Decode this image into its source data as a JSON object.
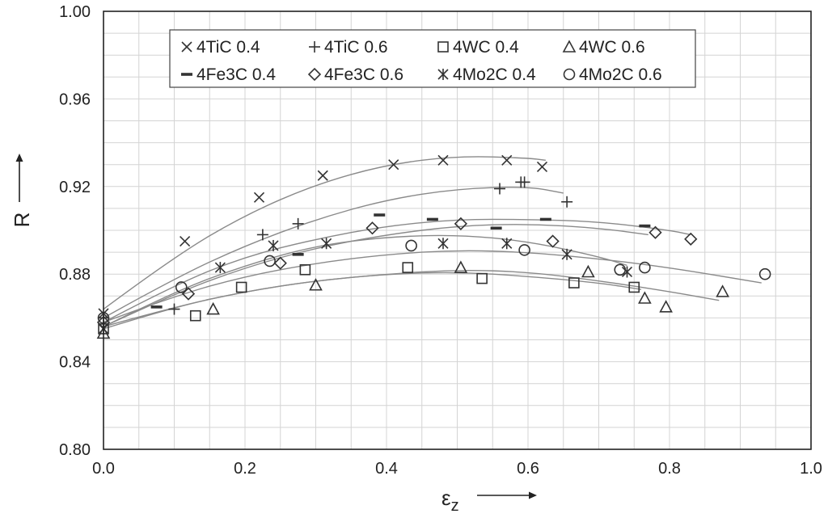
{
  "chart_data": {
    "type": "scatter",
    "xlabel_main": "ε",
    "xlabel_sub": "z",
    "ylabel": "R",
    "xlim": [
      0.0,
      1.0
    ],
    "ylim": [
      0.8,
      1.0
    ],
    "x_ticks": [
      "0.0",
      "0.2",
      "0.4",
      "0.6",
      "0.8",
      "1.0"
    ],
    "y_ticks": [
      "0.80",
      "0.84",
      "0.88",
      "0.92",
      "0.96",
      "1.00"
    ],
    "grid": true,
    "legend_position": "top",
    "series": [
      {
        "name": "4TiC 0.4",
        "marker": "x",
        "points": [
          [
            0.0,
            0.862
          ],
          [
            0.115,
            0.895
          ],
          [
            0.22,
            0.915
          ],
          [
            0.31,
            0.925
          ],
          [
            0.41,
            0.93
          ],
          [
            0.48,
            0.932
          ],
          [
            0.57,
            0.932
          ],
          [
            0.62,
            0.929
          ]
        ],
        "fit": [
          [
            0.0,
            0.864
          ],
          [
            0.1,
            0.888
          ],
          [
            0.2,
            0.907
          ],
          [
            0.3,
            0.921
          ],
          [
            0.4,
            0.93
          ],
          [
            0.5,
            0.934
          ],
          [
            0.6,
            0.933
          ],
          [
            0.625,
            0.932
          ]
        ]
      },
      {
        "name": "4TiC 0.6",
        "marker": "+",
        "points": [
          [
            0.0,
            0.86
          ],
          [
            0.1,
            0.864
          ],
          [
            0.225,
            0.898
          ],
          [
            0.275,
            0.903
          ],
          [
            0.56,
            0.919
          ],
          [
            0.59,
            0.922
          ],
          [
            0.595,
            0.922
          ],
          [
            0.655,
            0.913
          ]
        ],
        "fit": [
          [
            0.0,
            0.86
          ],
          [
            0.1,
            0.878
          ],
          [
            0.2,
            0.893
          ],
          [
            0.3,
            0.905
          ],
          [
            0.4,
            0.914
          ],
          [
            0.5,
            0.919
          ],
          [
            0.6,
            0.92
          ],
          [
            0.65,
            0.917
          ]
        ]
      },
      {
        "name": "4WC 0.4",
        "marker": "square",
        "points": [
          [
            0.0,
            0.855
          ],
          [
            0.13,
            0.861
          ],
          [
            0.195,
            0.874
          ],
          [
            0.285,
            0.882
          ],
          [
            0.43,
            0.883
          ],
          [
            0.535,
            0.878
          ],
          [
            0.665,
            0.876
          ],
          [
            0.75,
            0.874
          ]
        ],
        "fit": [
          [
            0.0,
            0.856
          ],
          [
            0.1,
            0.865
          ],
          [
            0.2,
            0.872
          ],
          [
            0.3,
            0.877
          ],
          [
            0.4,
            0.88
          ],
          [
            0.5,
            0.881
          ],
          [
            0.6,
            0.879
          ],
          [
            0.7,
            0.876
          ],
          [
            0.76,
            0.873
          ]
        ]
      },
      {
        "name": "4WC 0.6",
        "marker": "triangle",
        "points": [
          [
            0.0,
            0.853
          ],
          [
            0.155,
            0.864
          ],
          [
            0.3,
            0.875
          ],
          [
            0.505,
            0.883
          ],
          [
            0.685,
            0.881
          ],
          [
            0.765,
            0.869
          ],
          [
            0.795,
            0.865
          ],
          [
            0.875,
            0.872
          ]
        ],
        "fit": [
          [
            0.0,
            0.855
          ],
          [
            0.1,
            0.865
          ],
          [
            0.2,
            0.872
          ],
          [
            0.3,
            0.877
          ],
          [
            0.4,
            0.88
          ],
          [
            0.5,
            0.882
          ],
          [
            0.6,
            0.881
          ],
          [
            0.7,
            0.877
          ],
          [
            0.8,
            0.872
          ],
          [
            0.87,
            0.868
          ]
        ]
      },
      {
        "name": "4Fe3C 0.4",
        "marker": "dash",
        "points": [
          [
            0.075,
            0.865
          ],
          [
            0.275,
            0.889
          ],
          [
            0.39,
            0.907
          ],
          [
            0.465,
            0.905
          ],
          [
            0.555,
            0.901
          ],
          [
            0.625,
            0.905
          ],
          [
            0.765,
            0.902
          ]
        ],
        "fit": [
          [
            0.0,
            0.856
          ],
          [
            0.1,
            0.871
          ],
          [
            0.2,
            0.883
          ],
          [
            0.3,
            0.892
          ],
          [
            0.4,
            0.898
          ],
          [
            0.5,
            0.902
          ],
          [
            0.6,
            0.903
          ],
          [
            0.7,
            0.901
          ],
          [
            0.77,
            0.898
          ]
        ]
      },
      {
        "name": "4Fe3C 0.6",
        "marker": "diamond",
        "points": [
          [
            0.0,
            0.858
          ],
          [
            0.12,
            0.871
          ],
          [
            0.25,
            0.885
          ],
          [
            0.38,
            0.901
          ],
          [
            0.505,
            0.903
          ],
          [
            0.635,
            0.895
          ],
          [
            0.78,
            0.899
          ],
          [
            0.83,
            0.896
          ]
        ],
        "fit": [
          [
            0.0,
            0.858
          ],
          [
            0.1,
            0.875
          ],
          [
            0.2,
            0.888
          ],
          [
            0.3,
            0.896
          ],
          [
            0.4,
            0.902
          ],
          [
            0.5,
            0.905
          ],
          [
            0.6,
            0.905
          ],
          [
            0.7,
            0.904
          ],
          [
            0.8,
            0.9
          ],
          [
            0.83,
            0.898
          ]
        ]
      },
      {
        "name": "4Mo2C 0.4",
        "marker": "asterisk",
        "points": [
          [
            0.0,
            0.855
          ],
          [
            0.165,
            0.883
          ],
          [
            0.24,
            0.893
          ],
          [
            0.315,
            0.894
          ],
          [
            0.48,
            0.894
          ],
          [
            0.57,
            0.894
          ],
          [
            0.655,
            0.889
          ],
          [
            0.74,
            0.881
          ]
        ],
        "fit": [
          [
            0.0,
            0.856
          ],
          [
            0.1,
            0.872
          ],
          [
            0.2,
            0.884
          ],
          [
            0.3,
            0.893
          ],
          [
            0.4,
            0.897
          ],
          [
            0.5,
            0.898
          ],
          [
            0.6,
            0.895
          ],
          [
            0.7,
            0.888
          ],
          [
            0.74,
            0.884
          ]
        ]
      },
      {
        "name": "4Mo2C 0.6",
        "marker": "circle",
        "points": [
          [
            0.0,
            0.86
          ],
          [
            0.11,
            0.874
          ],
          [
            0.235,
            0.886
          ],
          [
            0.435,
            0.893
          ],
          [
            0.595,
            0.891
          ],
          [
            0.73,
            0.882
          ],
          [
            0.765,
            0.883
          ],
          [
            0.935,
            0.88
          ]
        ],
        "fit": [
          [
            0.0,
            0.858
          ],
          [
            0.1,
            0.87
          ],
          [
            0.2,
            0.879
          ],
          [
            0.3,
            0.885
          ],
          [
            0.4,
            0.889
          ],
          [
            0.5,
            0.891
          ],
          [
            0.6,
            0.89
          ],
          [
            0.7,
            0.887
          ],
          [
            0.8,
            0.883
          ],
          [
            0.93,
            0.876
          ]
        ]
      }
    ]
  }
}
